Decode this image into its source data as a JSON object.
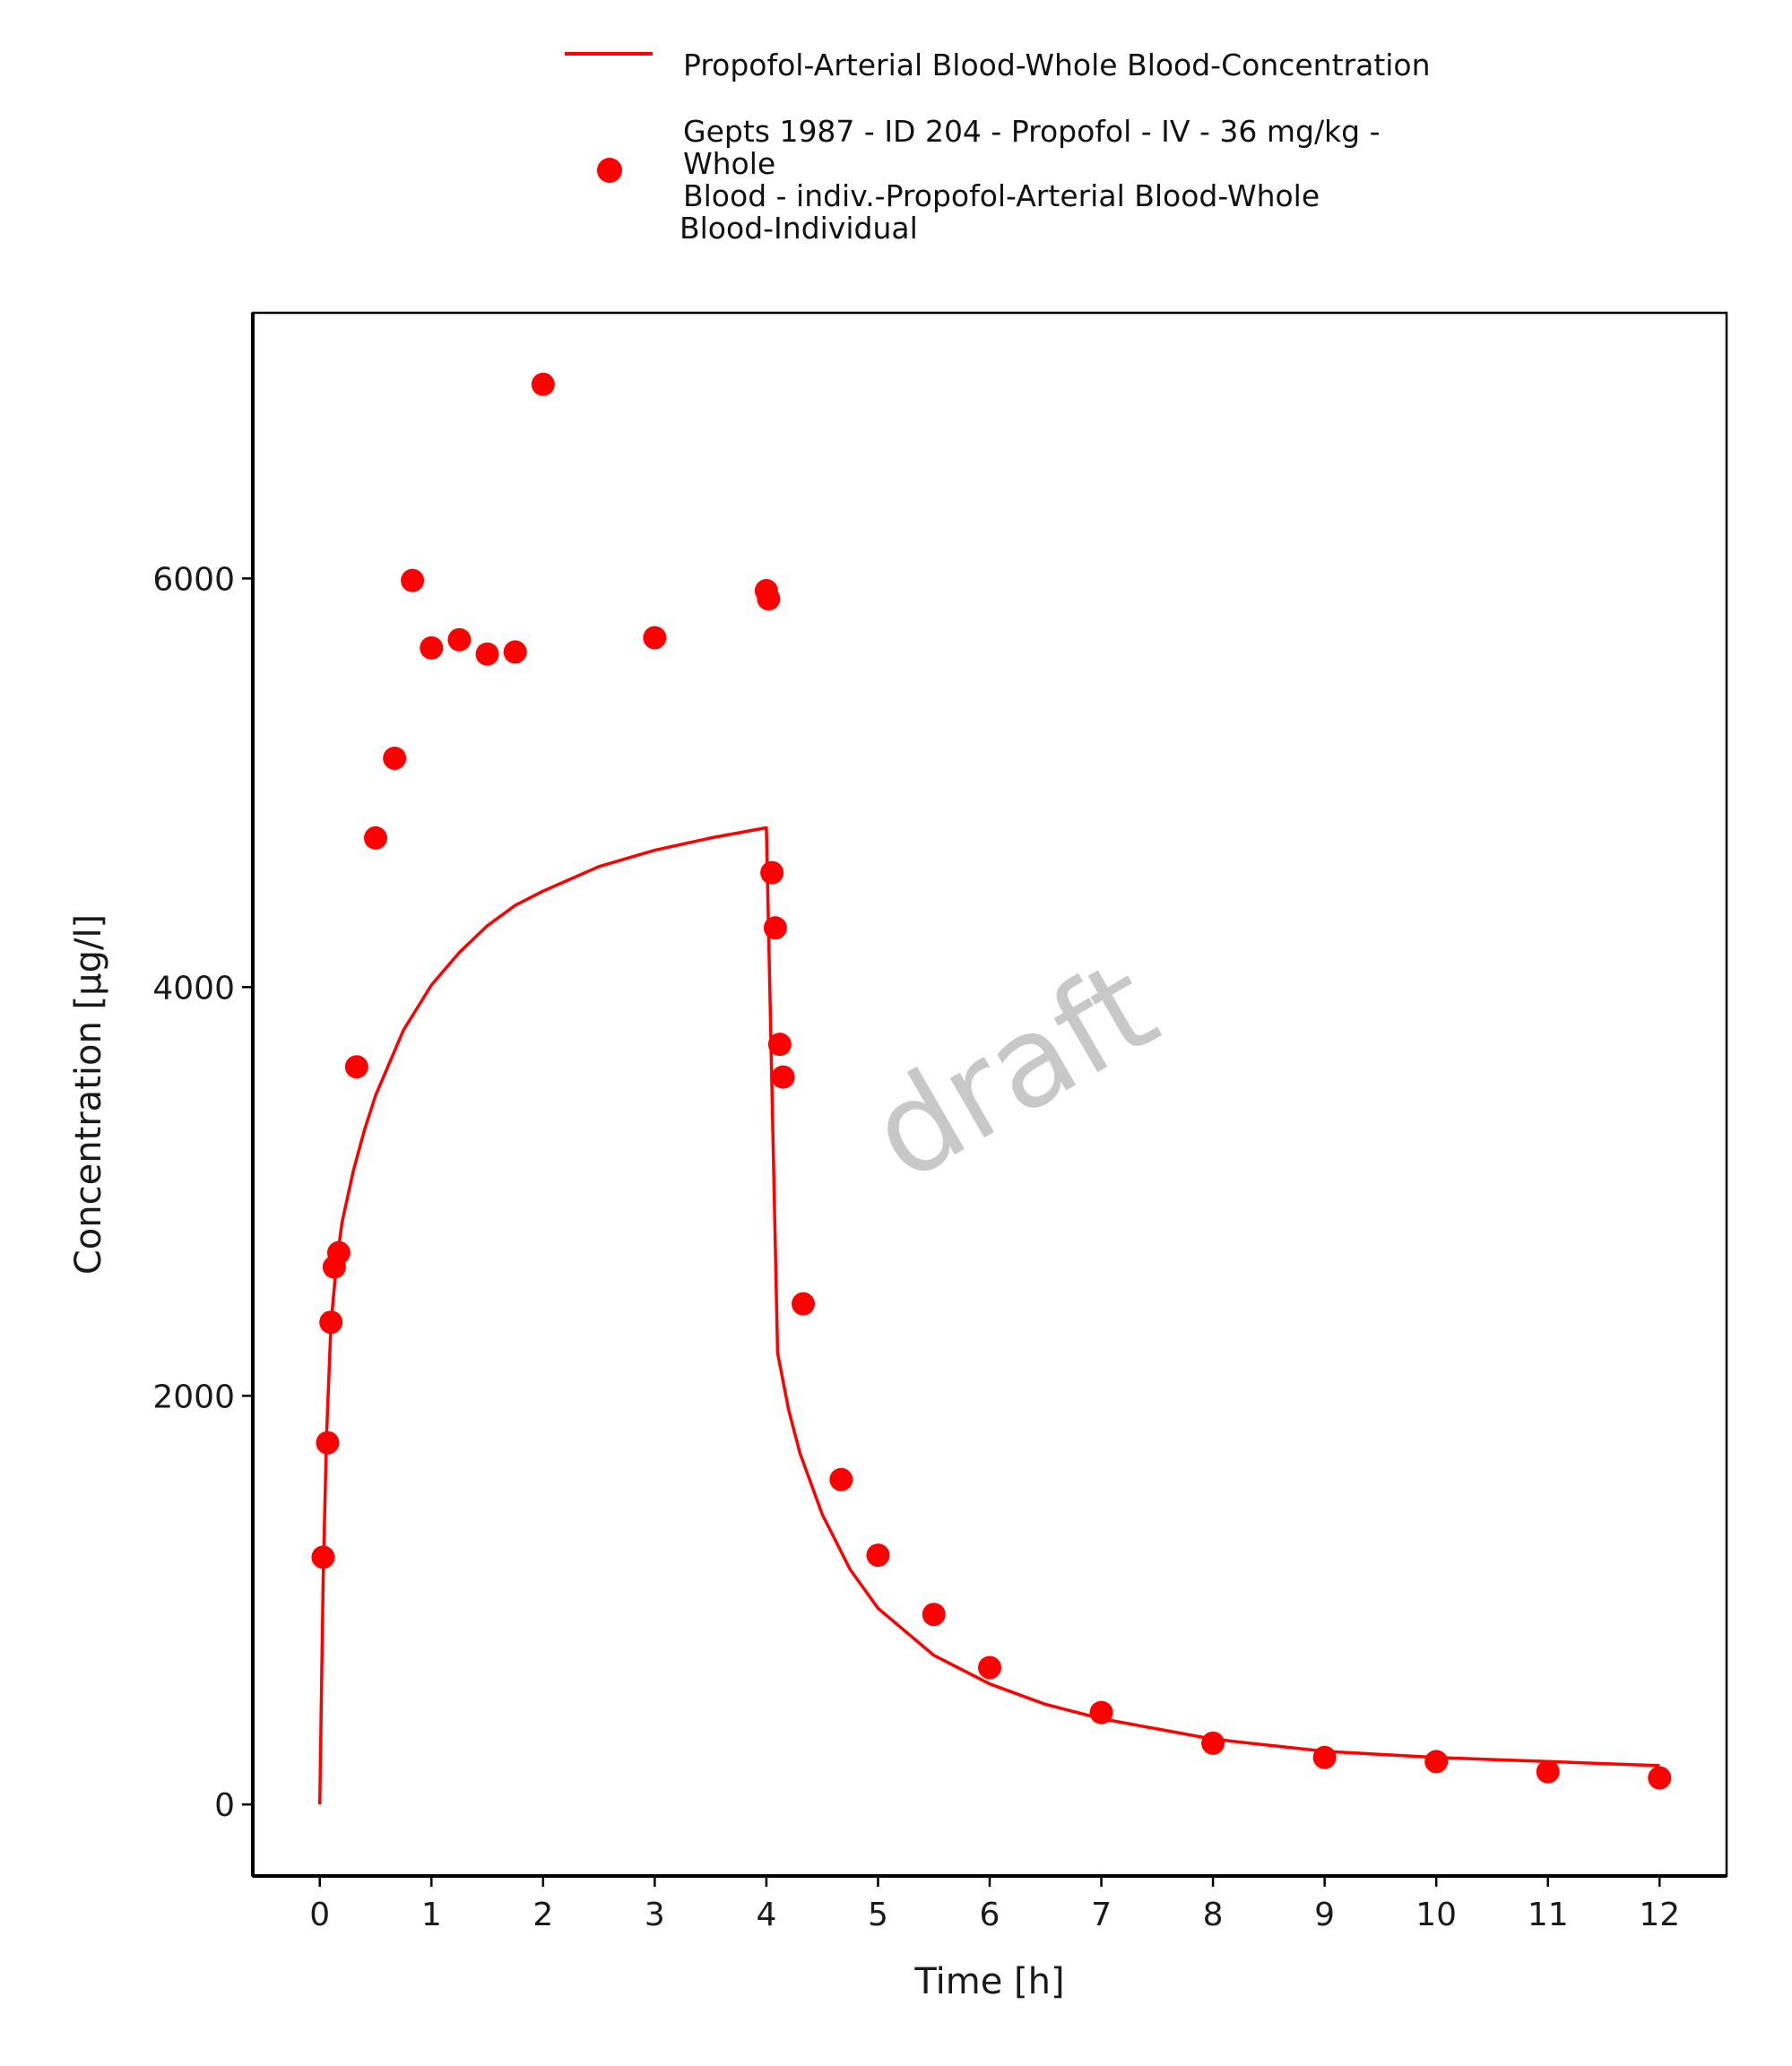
{
  "chart_data": {
    "type": "scatter",
    "xlabel": "Time [h]",
    "ylabel": "Concentration [µg/l]",
    "xlim": [
      -0.6,
      12.6
    ],
    "ylim": [
      -350,
      7300
    ],
    "xticks": [
      0,
      1,
      2,
      3,
      4,
      5,
      6,
      7,
      8,
      9,
      10,
      11,
      12
    ],
    "yticks": [
      0,
      2000,
      4000,
      6000
    ],
    "grid": false,
    "legend_position": "top",
    "watermark": "draft",
    "series": [
      {
        "name": "Propofol-Arterial Blood-Whole Blood-Concentration",
        "kind": "line",
        "color": "#ff0000",
        "x": [
          0,
          0.03,
          0.06,
          0.1,
          0.15,
          0.2,
          0.3,
          0.4,
          0.5,
          0.75,
          1.0,
          1.25,
          1.5,
          1.75,
          2.0,
          2.5,
          3.0,
          3.5,
          4.0,
          4.1,
          4.2,
          4.3,
          4.5,
          4.75,
          5.0,
          5.5,
          6.0,
          6.5,
          7.0,
          7.5,
          8.0,
          9.0,
          10.0,
          11.0,
          12.0
        ],
        "y": [
          0,
          1100,
          1800,
          2350,
          2650,
          2850,
          3100,
          3300,
          3470,
          3790,
          4010,
          4170,
          4300,
          4400,
          4470,
          4590,
          4670,
          4730,
          4780,
          2210,
          1930,
          1720,
          1420,
          1150,
          960,
          730,
          590,
          490,
          420,
          370,
          320,
          260,
          230,
          210,
          190
        ]
      },
      {
        "name": "Gepts 1987 - ID 204 - Propofol - IV - 36 mg/kg - Whole Blood - indiv.-Propofol-Arterial Blood-Whole Blood-Individual",
        "kind": "points",
        "color": "#ff0000",
        "x": [
          0.03,
          0.07,
          0.1,
          0.13,
          0.17,
          0.33,
          0.5,
          0.67,
          0.83,
          1.0,
          1.25,
          1.5,
          1.75,
          2.0,
          3.0,
          4.0,
          4.02,
          4.05,
          4.08,
          4.12,
          4.15,
          4.33,
          4.67,
          5.0,
          5.5,
          6.0,
          7.0,
          8.0,
          9.0,
          10.0,
          11.0,
          12.0
        ],
        "y": [
          1210,
          1770,
          2360,
          2630,
          2700,
          3610,
          4730,
          5120,
          5990,
          5660,
          5700,
          5630,
          5640,
          6950,
          5710,
          5940,
          5900,
          4560,
          4290,
          3720,
          3560,
          2450,
          1590,
          1220,
          930,
          670,
          450,
          300,
          230,
          210,
          160,
          130
        ]
      }
    ],
    "legend": {
      "line_label": "Propofol-Arterial Blood-Whole Blood-Concentration",
      "points_label_lines": [
        "Gepts 1987 - ID 204 - Propofol - IV - 36 mg/kg -",
        "Whole",
        "Blood - indiv.-Propofol-Arterial Blood-Whole",
        "Blood-Individual"
      ]
    }
  }
}
